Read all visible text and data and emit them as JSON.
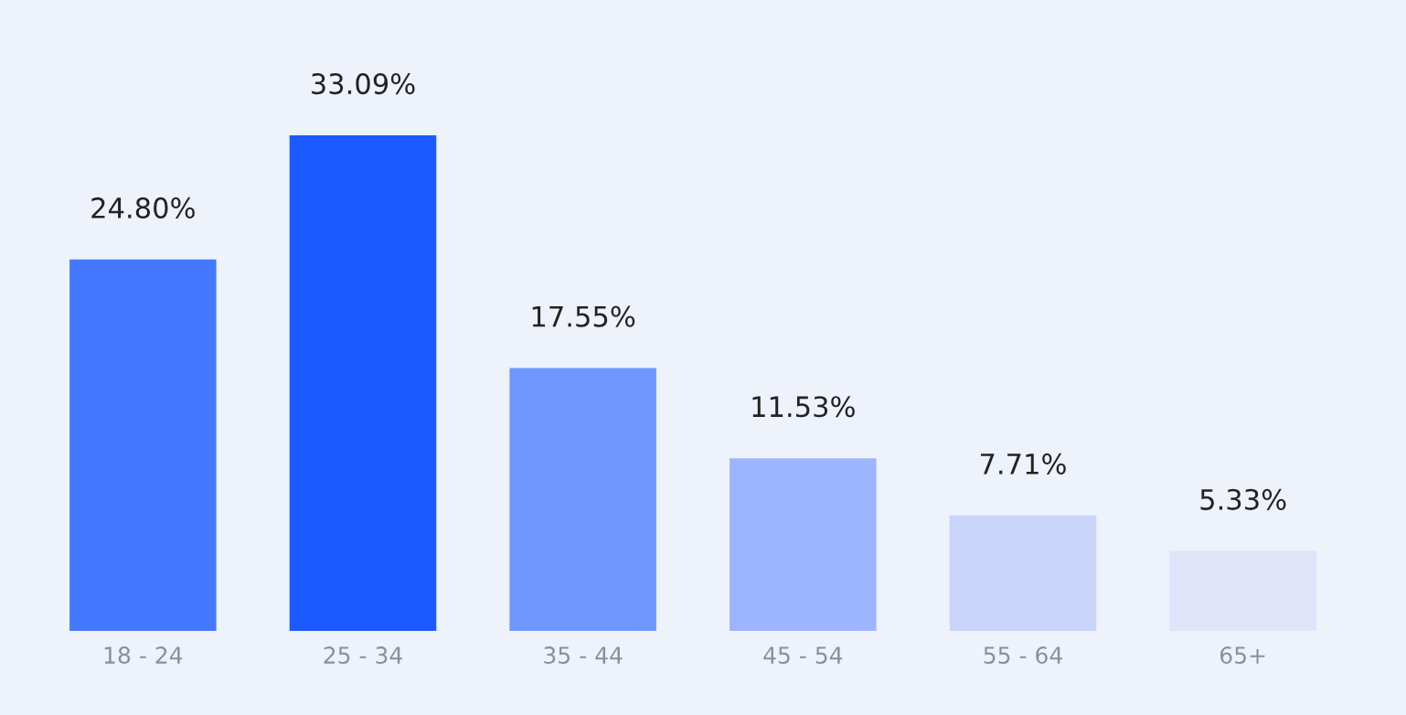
{
  "chart_data": {
    "type": "bar",
    "categories": [
      "18 - 24",
      "25 - 34",
      "35 - 44",
      "45 - 54",
      "55 - 64",
      "65+"
    ],
    "values": [
      24.8,
      33.09,
      17.55,
      11.53,
      7.71,
      5.33
    ],
    "value_labels": [
      "24.80%",
      "33.09%",
      "17.55%",
      "11.53%",
      "7.71%",
      "5.33%"
    ],
    "colors": [
      "#4479ff",
      "#1a5aff",
      "#7097ff",
      "#9db5ff",
      "#c9d4fa",
      "#dfe4f8"
    ],
    "grid": false,
    "legend": false
  }
}
